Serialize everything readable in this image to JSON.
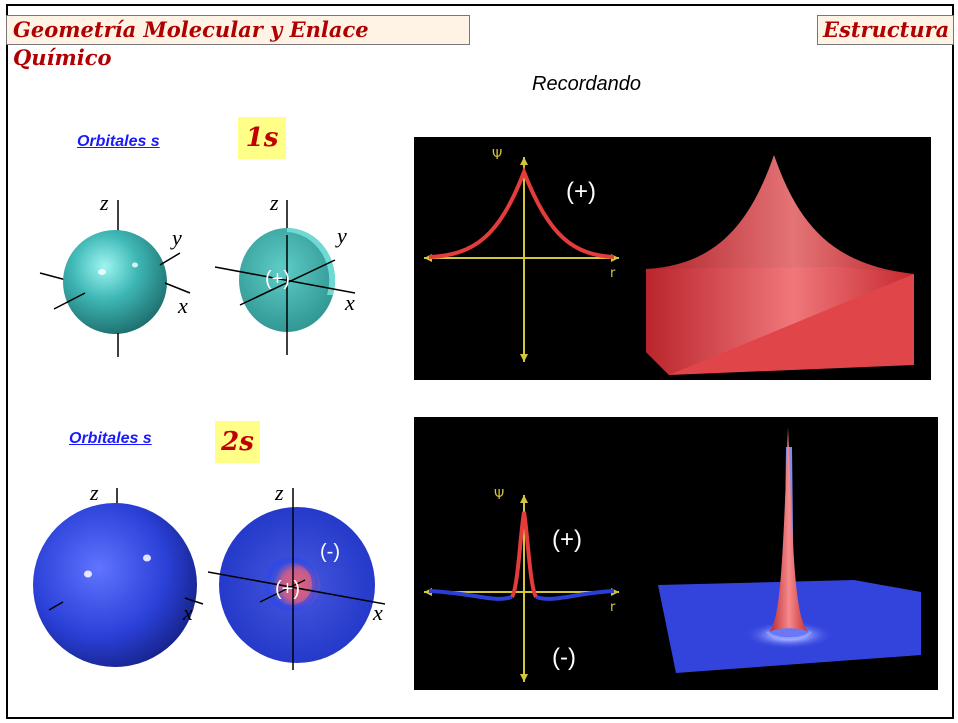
{
  "header": {
    "title": "Geometría Molecular y Enlace Químico",
    "section": "Estructura"
  },
  "subtitle": "Recordando",
  "rows": [
    {
      "link": "Orbitales s",
      "orbital": "1s",
      "axes": {
        "z": "z",
        "y": "y",
        "x": "x"
      },
      "sign_sphere": "(+)",
      "plot_axis_psi": "Ψ",
      "plot_axis_r": "r",
      "plot_sign_pos": "(+)",
      "sphere_color": "#3fb8b6"
    },
    {
      "link": "Orbitales s",
      "orbital": "2s",
      "axes": {
        "z": "z",
        "x": "x"
      },
      "sign_inner": "(+)",
      "sign_outer": "(-)",
      "plot_axis_psi": "Ψ",
      "plot_axis_r": "r",
      "plot_sign_pos": "(+)",
      "plot_sign_neg": "(-)",
      "sphere_color": "#2a3fd6"
    }
  ]
}
